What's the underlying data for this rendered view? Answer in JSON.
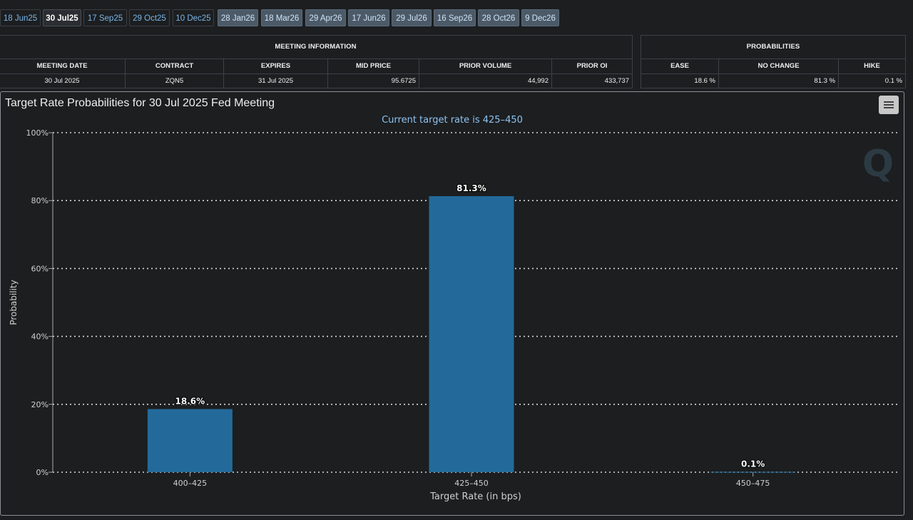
{
  "tabs": [
    {
      "label": "18 Jun25",
      "style": "near"
    },
    {
      "label": "30 Jul25",
      "style": "active"
    },
    {
      "label": "17 Sep25",
      "style": "near"
    },
    {
      "label": "29 Oct25",
      "style": "near"
    },
    {
      "label": "10 Dec25",
      "style": "near"
    },
    {
      "label": "28 Jan26",
      "style": "far"
    },
    {
      "label": "18 Mar26",
      "style": "far"
    },
    {
      "label": "29 Apr26",
      "style": "far"
    },
    {
      "label": "17 Jun26",
      "style": "far"
    },
    {
      "label": "29 Jul26",
      "style": "far"
    },
    {
      "label": "16 Sep26",
      "style": "far"
    },
    {
      "label": "28 Oct26",
      "style": "far"
    },
    {
      "label": "9 Dec26",
      "style": "far"
    }
  ],
  "meeting_info": {
    "title": "MEETING INFORMATION",
    "headers": [
      "MEETING DATE",
      "CONTRACT",
      "EXPIRES",
      "MID PRICE",
      "PRIOR VOLUME",
      "PRIOR OI"
    ],
    "values": [
      "30 Jul 2025",
      "ZQN5",
      "31 Jul 2025",
      "95.6725",
      "44,992",
      "433,737"
    ]
  },
  "probabilities": {
    "title": "PROBABILITIES",
    "headers": [
      "EASE",
      "NO CHANGE",
      "HIKE"
    ],
    "values": [
      "18.6 %",
      "81.3 %",
      "0.1 %"
    ]
  },
  "chart_panel": {
    "title": "Target Rate Probabilities for 30 Jul 2025 Fed Meeting",
    "menu_icon": "hamburger-menu-icon",
    "watermark": "Q"
  },
  "colors": {
    "bar": "#236a9a",
    "background": "#1c1e20",
    "subtitle": "#8ec3f0"
  },
  "chart_data": {
    "type": "bar",
    "title": "Target Rate Probabilities for 30 Jul 2025 Fed Meeting",
    "subtitle": "Current target rate is 425–450",
    "categories": [
      "400–425",
      "425–450",
      "450–475"
    ],
    "values": [
      18.6,
      81.3,
      0.1
    ],
    "data_labels": [
      "18.6%",
      "81.3%",
      "0.1%"
    ],
    "xlabel": "Target Rate (in bps)",
    "ylabel": "Probability",
    "ylim": [
      0,
      100
    ],
    "yticks": [
      0,
      20,
      40,
      60,
      80,
      100
    ],
    "ytick_labels": [
      "0%",
      "20%",
      "40%",
      "60%",
      "80%",
      "100%"
    ],
    "grid": true
  }
}
